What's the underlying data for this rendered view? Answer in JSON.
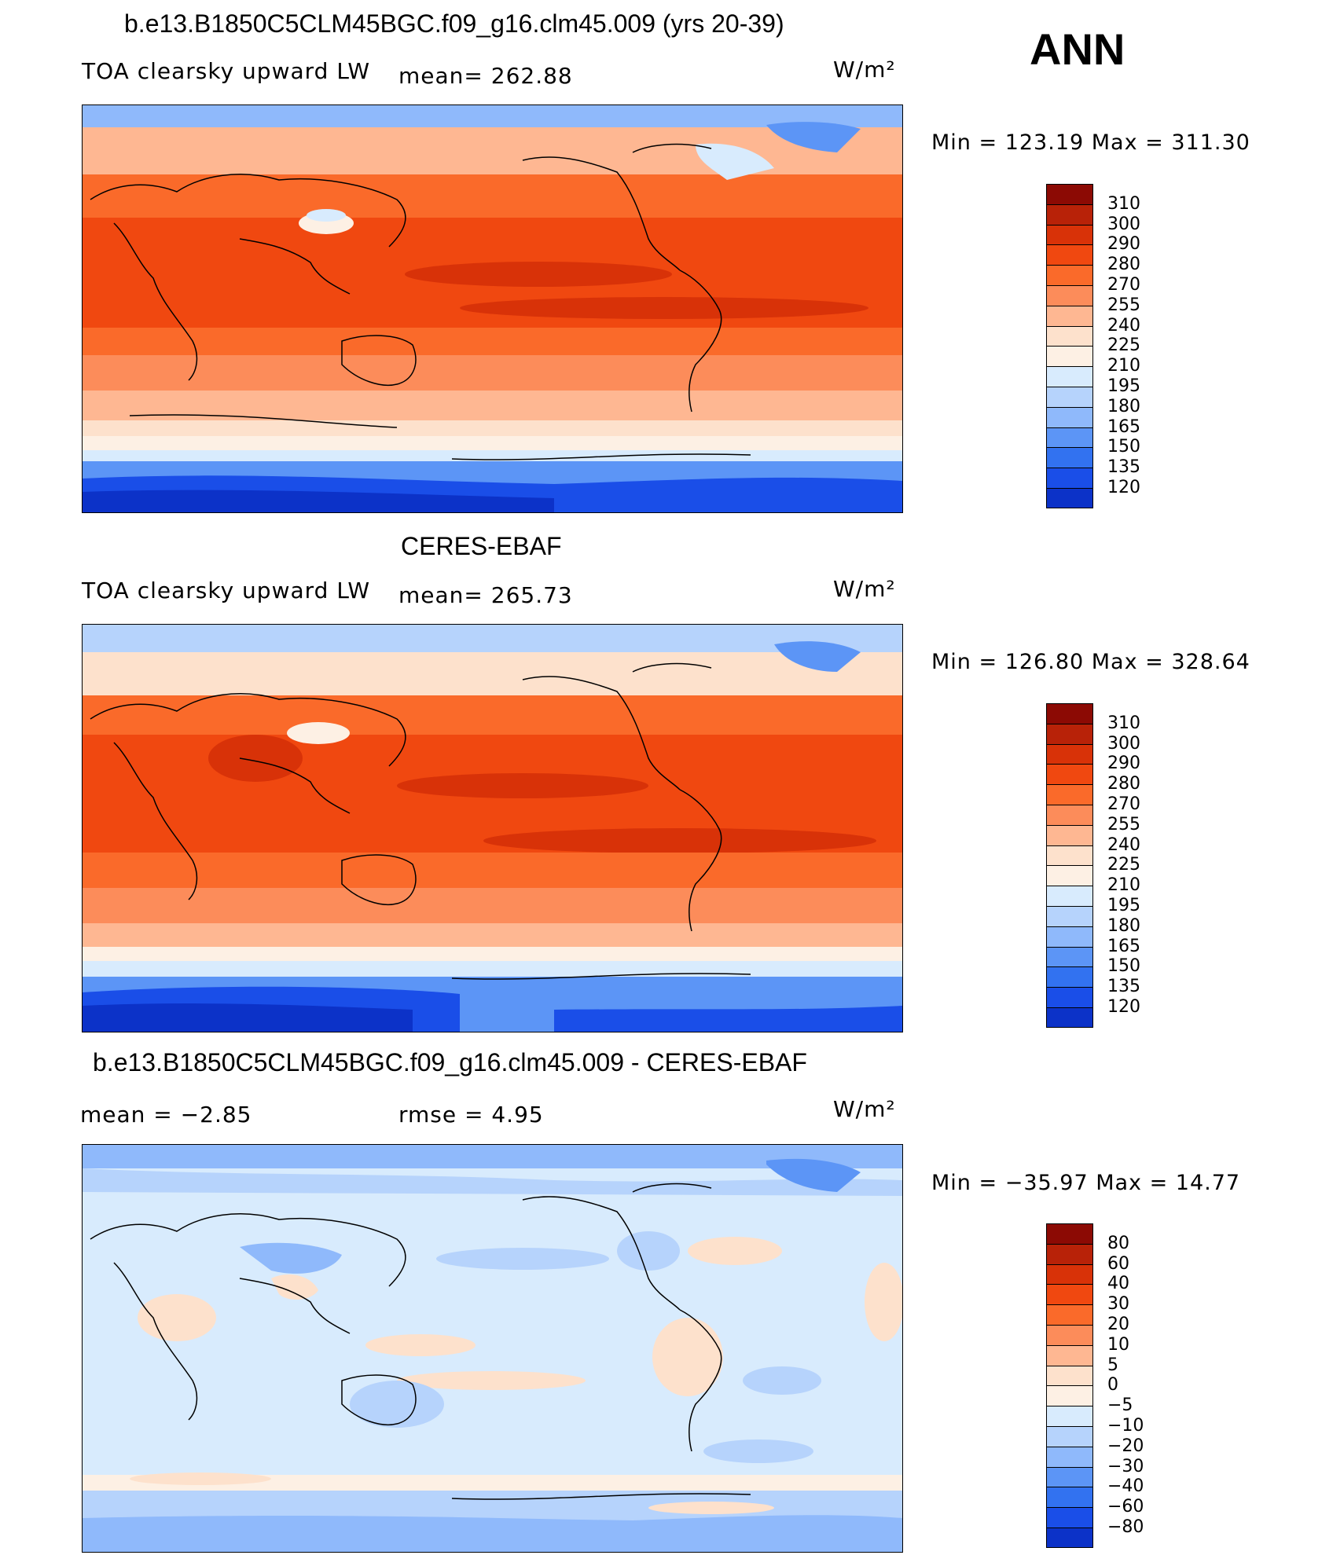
{
  "page_title": "ANN",
  "units": "W/m²",
  "panels": [
    {
      "title": "b.e13.B1850C5CLM45BGC.f09_g16.clm45.009 (yrs 20-39)",
      "left_label": "TOA clearsky upward LW",
      "mean_label": "mean= 262.88",
      "units": "W/m²",
      "minmax": "Min  =  123.19  Max  =  311.30",
      "min": 123.19,
      "max": 311.3,
      "mean": 262.88,
      "colorbar": {
        "labels": [
          "310",
          "300",
          "290",
          "280",
          "270",
          "255",
          "240",
          "225",
          "210",
          "195",
          "180",
          "165",
          "150",
          "135",
          "120"
        ],
        "colors": [
          "#8c0a04",
          "#b82208",
          "#d83208",
          "#f04810",
          "#fa6a2a",
          "#fc8c5a",
          "#feb792",
          "#fde1cc",
          "#fdf0e4",
          "#d8ebfd",
          "#b6d3fc",
          "#8fb9fb",
          "#5c95f6",
          "#3272f0",
          "#1a4ee8",
          "#0c32c8",
          "#021a9c"
        ]
      }
    },
    {
      "title": "CERES-EBAF",
      "left_label": "TOA clearsky upward LW",
      "mean_label": "mean= 265.73",
      "units": "W/m²",
      "minmax": "Min  =  126.80  Max  =  328.64",
      "min": 126.8,
      "max": 328.64,
      "mean": 265.73,
      "colorbar": {
        "labels": [
          "310",
          "300",
          "290",
          "280",
          "270",
          "255",
          "240",
          "225",
          "210",
          "195",
          "180",
          "165",
          "150",
          "135",
          "120"
        ],
        "colors": [
          "#8c0a04",
          "#b82208",
          "#d83208",
          "#f04810",
          "#fa6a2a",
          "#fc8c5a",
          "#feb792",
          "#fde1cc",
          "#fdf0e4",
          "#d8ebfd",
          "#b6d3fc",
          "#8fb9fb",
          "#5c95f6",
          "#3272f0",
          "#1a4ee8",
          "#0c32c8",
          "#021a9c"
        ]
      }
    },
    {
      "title": "b.e13.B1850C5CLM45BGC.f09_g16.clm45.009 - CERES-EBAF",
      "left_label": "mean  =    −2.85",
      "mean_label": "rmse  =     4.95",
      "units": "W/m²",
      "minmax": "Min  =  −35.97  Max  =    14.77",
      "min": -35.97,
      "max": 14.77,
      "mean": -2.85,
      "rmse": 4.95,
      "colorbar": {
        "labels": [
          "80",
          "60",
          "40",
          "30",
          "20",
          "10",
          "5",
          "0",
          "−5",
          "−10",
          "−20",
          "−30",
          "−40",
          "−60",
          "−80"
        ],
        "colors": [
          "#8c0a04",
          "#b82208",
          "#d83208",
          "#f04810",
          "#fa6a2a",
          "#fc8c5a",
          "#feb792",
          "#fde1cc",
          "#fdf0e4",
          "#d8ebfd",
          "#b6d3fc",
          "#8fb9fb",
          "#5c95f6",
          "#3272f0",
          "#1a4ee8",
          "#0c32c8",
          "#021a9c"
        ]
      }
    }
  ]
}
